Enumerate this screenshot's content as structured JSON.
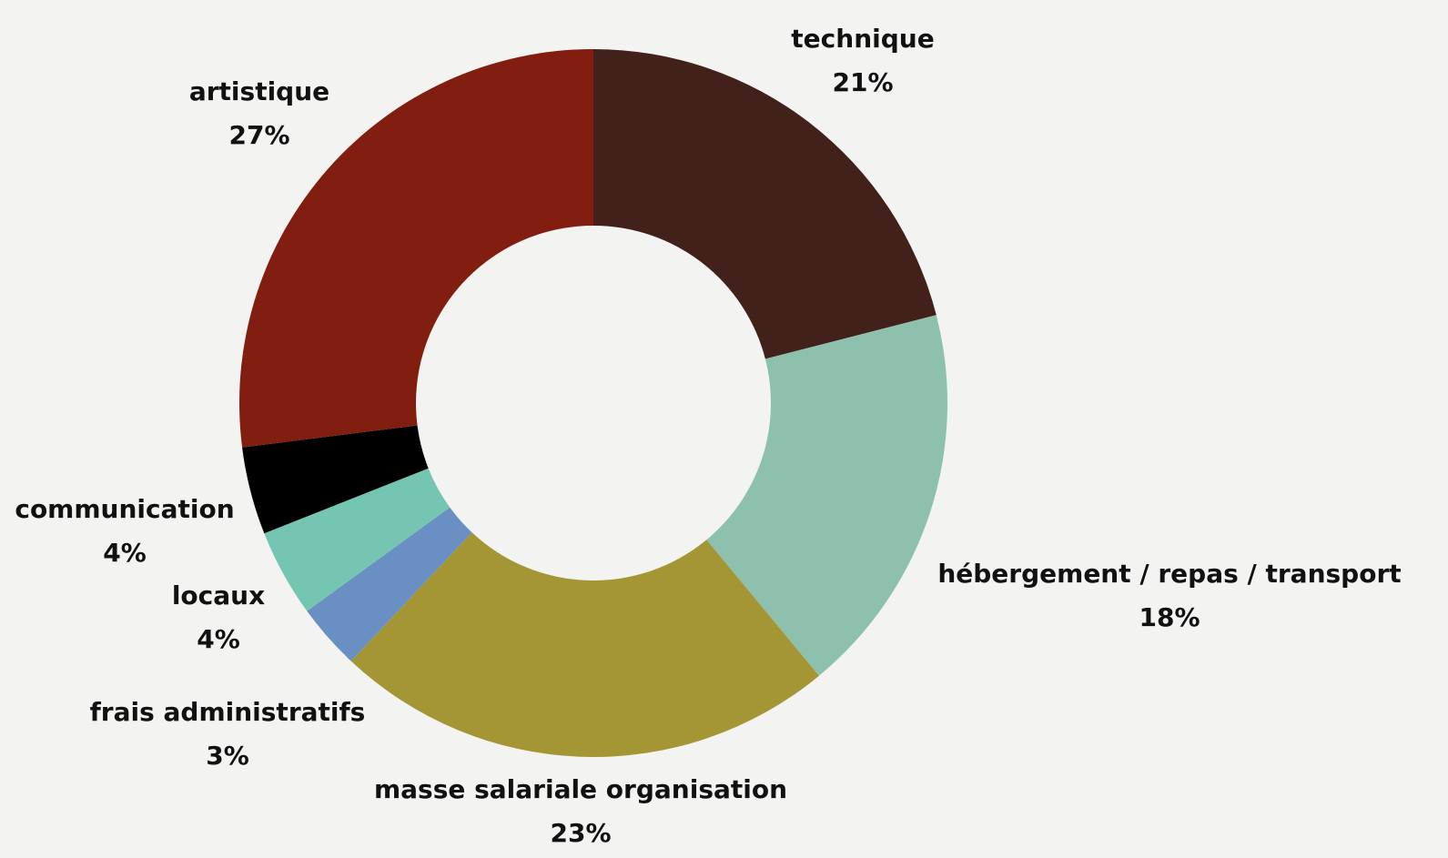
{
  "chart_data": {
    "type": "pie",
    "style": "donut",
    "start": "top",
    "direction": "clockwise",
    "slices": [
      {
        "label": "technique",
        "value": 21,
        "value_label": "21%",
        "color": "#42211b"
      },
      {
        "label": "hébergement / repas / transport",
        "value": 18,
        "value_label": "18%",
        "color": "#8dc1ae"
      },
      {
        "label": "masse salariale organisation",
        "value": 23,
        "value_label": "23%",
        "color": "#a49635"
      },
      {
        "label": "frais administratifs",
        "value": 3,
        "value_label": "3%",
        "color": "#6a8fc2"
      },
      {
        "label": "locaux",
        "value": 4,
        "value_label": "4%",
        "color": "#74c6b2"
      },
      {
        "label": "communication",
        "value": 4,
        "value_label": "4%",
        "color": "#000000"
      },
      {
        "label": "artistique",
        "value": 27,
        "value_label": "27%",
        "color": "#821e10"
      }
    ]
  }
}
